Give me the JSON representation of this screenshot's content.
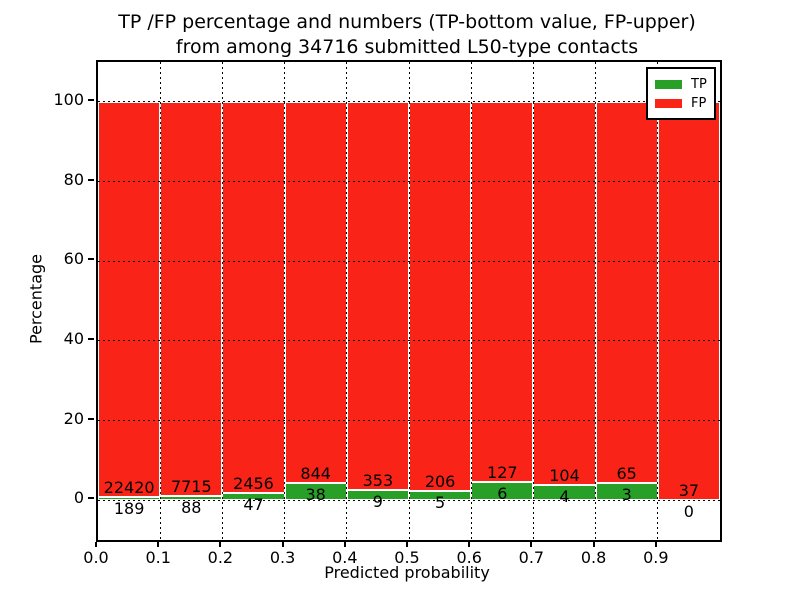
{
  "chart": {
    "title_line1": "TP /FP percentage and numbers (TP-bottom value, FP-upper)",
    "title_line2": "from among 34716 submitted L50-type contacts",
    "xlabel": "Predicted probability",
    "ylabel": "Percentage",
    "legend": [
      {
        "label": "TP",
        "color": "#28a028"
      },
      {
        "label": "FP",
        "color": "#fa2318"
      }
    ]
  },
  "chart_data": {
    "type": "bar",
    "stacked": true,
    "normalized_to_percent_per_bar": true,
    "title": "TP /FP percentage and numbers (TP-bottom value, FP-upper) from among 34716 submitted L50-type contacts",
    "xlabel": "Predicted probability",
    "ylabel": "Percentage",
    "total_submitted": 34716,
    "bin_width": 0.1,
    "bin_starts": [
      0.0,
      0.1,
      0.2,
      0.3,
      0.4,
      0.5,
      0.6,
      0.7,
      0.8,
      0.9
    ],
    "series": [
      {
        "name": "TP",
        "color": "#28a028",
        "counts": [
          189,
          88,
          47,
          38,
          9,
          5,
          6,
          4,
          3,
          0
        ]
      },
      {
        "name": "FP",
        "color": "#fa2318",
        "counts": [
          22420,
          7715,
          2456,
          844,
          353,
          206,
          127,
          104,
          65,
          37
        ]
      }
    ],
    "bar_edge_color": "#ffffff",
    "xticks": [
      "0.0",
      "0.1",
      "0.2",
      "0.3",
      "0.4",
      "0.5",
      "0.6",
      "0.7",
      "0.8",
      "0.9"
    ],
    "yticks": [
      0,
      20,
      40,
      60,
      80,
      100
    ],
    "xlim": [
      0,
      1
    ],
    "ylim": [
      -10,
      110
    ],
    "grid": "dotted",
    "legend_position": "upper right"
  }
}
